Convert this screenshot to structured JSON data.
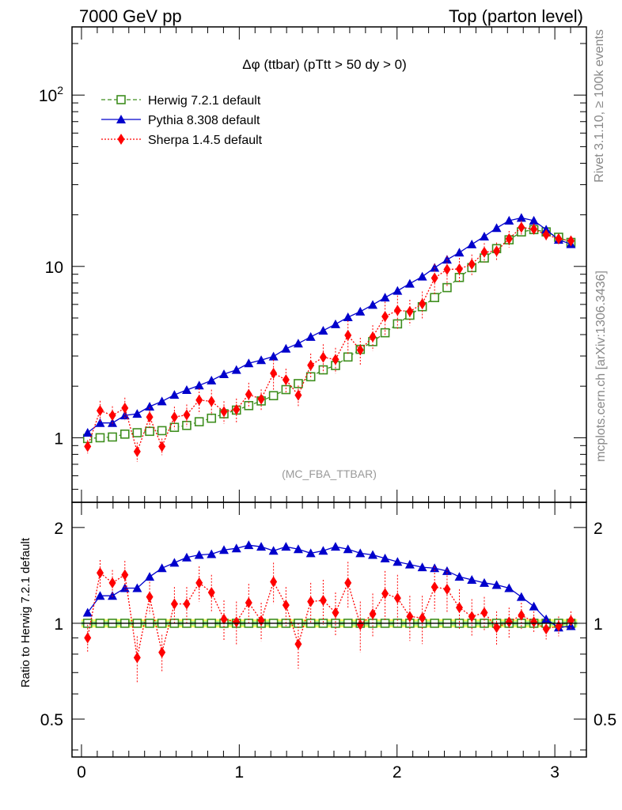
{
  "header": {
    "left": "7000 GeV pp",
    "right": "Top (parton level)"
  },
  "side_labels": {
    "rivet": "Rivet 3.1.10, ≥ 100k events",
    "mcplots": "mcplots.cern.ch [arXiv:1306.3436]"
  },
  "chart_data": {
    "type": "line",
    "title": "Δφ (ttbar) (pTtt > 50 dy > 0)",
    "watermark": "(MC_FBA_TTBAR)",
    "ratio_ylabel": "Ratio to Herwig 7.2.1 default",
    "xlim": [
      -0.06,
      3.2
    ],
    "x_ticks": [
      "0",
      "1",
      "2",
      "3"
    ],
    "main_yscale": "log",
    "main_ylim": [
      0.42,
      250
    ],
    "main_y_ticks": [
      "1",
      "10",
      "10^2"
    ],
    "ratio_ylim": [
      0.38,
      2.4
    ],
    "ratio_y_ticks": [
      "0.5",
      "1",
      "2"
    ],
    "legend_position": "top-left",
    "x": [
      0.039,
      0.118,
      0.196,
      0.275,
      0.353,
      0.432,
      0.51,
      0.589,
      0.667,
      0.746,
      0.824,
      0.903,
      0.982,
      1.06,
      1.139,
      1.217,
      1.296,
      1.374,
      1.453,
      1.532,
      1.61,
      1.689,
      1.767,
      1.846,
      1.924,
      2.003,
      2.081,
      2.16,
      2.238,
      2.317,
      2.395,
      2.474,
      2.553,
      2.631,
      2.71,
      2.788,
      2.867,
      2.945,
      3.024,
      3.102
    ],
    "series": [
      {
        "name": "Herwig 7.2.1 default",
        "color": "#3e8e1e",
        "marker": "open-square",
        "linestyle": "dashed",
        "values": [
          0.99,
          1.0,
          1.01,
          1.05,
          1.07,
          1.09,
          1.1,
          1.15,
          1.18,
          1.24,
          1.3,
          1.38,
          1.45,
          1.54,
          1.64,
          1.76,
          1.91,
          2.07,
          2.27,
          2.49,
          2.64,
          2.96,
          3.28,
          3.64,
          4.1,
          4.62,
          5.19,
          5.82,
          6.58,
          7.52,
          8.62,
          9.84,
          11.2,
          12.7,
          14.3,
          15.9,
          16.4,
          15.9,
          14.8,
          13.8
        ],
        "ratio": [
          1.0,
          1.0,
          1.0,
          1.0,
          1.0,
          1.0,
          1.0,
          1.0,
          1.0,
          1.0,
          1.0,
          1.0,
          1.0,
          1.0,
          1.0,
          1.0,
          1.0,
          1.0,
          1.0,
          1.0,
          1.0,
          1.0,
          1.0,
          1.0,
          1.0,
          1.0,
          1.0,
          1.0,
          1.0,
          1.0,
          1.0,
          1.0,
          1.0,
          1.0,
          1.0,
          1.0,
          1.0,
          1.0,
          1.0,
          1.0
        ]
      },
      {
        "name": "Pythia 8.308 default",
        "color": "#0000cc",
        "marker": "filled-triangle",
        "linestyle": "solid",
        "values": [
          1.07,
          1.22,
          1.22,
          1.35,
          1.38,
          1.52,
          1.63,
          1.78,
          1.9,
          2.02,
          2.16,
          2.35,
          2.49,
          2.72,
          2.84,
          2.98,
          3.31,
          3.55,
          3.88,
          4.22,
          4.6,
          5.05,
          5.45,
          5.97,
          6.58,
          7.21,
          7.93,
          8.72,
          9.82,
          10.95,
          12.05,
          13.45,
          14.95,
          16.75,
          18.5,
          19.2,
          18.5,
          16.4,
          14.3,
          13.5
        ],
        "ratio": [
          1.08,
          1.22,
          1.22,
          1.29,
          1.29,
          1.4,
          1.49,
          1.55,
          1.61,
          1.64,
          1.65,
          1.7,
          1.72,
          1.76,
          1.74,
          1.69,
          1.74,
          1.71,
          1.66,
          1.69,
          1.74,
          1.71,
          1.66,
          1.64,
          1.6,
          1.56,
          1.53,
          1.5,
          1.49,
          1.46,
          1.4,
          1.37,
          1.34,
          1.32,
          1.29,
          1.21,
          1.13,
          1.03,
          0.97,
          0.98
        ]
      },
      {
        "name": "Sherpa 1.4.5 default",
        "color": "#ff0000",
        "marker": "filled-diamond",
        "linestyle": "dotted",
        "values": [
          0.89,
          1.44,
          1.35,
          1.49,
          0.83,
          1.32,
          0.89,
          1.32,
          1.36,
          1.66,
          1.63,
          1.42,
          1.46,
          1.79,
          1.68,
          2.38,
          2.18,
          1.77,
          2.65,
          2.95,
          2.86,
          3.96,
          3.25,
          3.88,
          5.1,
          5.54,
          5.46,
          6.05,
          8.55,
          9.6,
          9.66,
          10.3,
          12.1,
          12.3,
          14.5,
          16.9,
          16.5,
          15.3,
          14.5,
          14.1
        ],
        "ratio": [
          0.9,
          1.44,
          1.34,
          1.42,
          0.78,
          1.21,
          0.81,
          1.15,
          1.15,
          1.34,
          1.25,
          1.03,
          1.01,
          1.16,
          1.02,
          1.35,
          1.14,
          0.86,
          1.17,
          1.18,
          1.08,
          1.34,
          0.99,
          1.07,
          1.24,
          1.2,
          1.05,
          1.04,
          1.3,
          1.28,
          1.12,
          1.05,
          1.08,
          0.97,
          1.01,
          1.06,
          1.01,
          0.96,
          0.98,
          1.02
        ],
        "errors": [
          0.09,
          0.14,
          0.13,
          0.15,
          0.13,
          0.14,
          0.11,
          0.15,
          0.15,
          0.17,
          0.17,
          0.15,
          0.16,
          0.17,
          0.14,
          0.2,
          0.16,
          0.14,
          0.17,
          0.19,
          0.17,
          0.22,
          0.18,
          0.17,
          0.22,
          0.22,
          0.17,
          0.18,
          0.21,
          0.2,
          0.16,
          0.14,
          0.13,
          0.12,
          0.11,
          0.1,
          0.08,
          0.07,
          0.07,
          0.07
        ]
      }
    ],
    "band_colors": [
      "#ffff66",
      "#99ee99"
    ]
  }
}
